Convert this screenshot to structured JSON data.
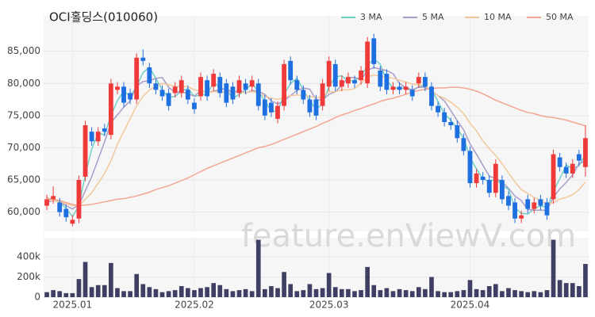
{
  "chart_data": {
    "type": "candlestick",
    "title": "OCI홀딩스(010060)",
    "watermark": "feature.enViewV.com",
    "categories": [
      null,
      null,
      null,
      null,
      "2025.01",
      null,
      null,
      null,
      null,
      null,
      null,
      null,
      null,
      null,
      null,
      null,
      null,
      null,
      null,
      null,
      null,
      null,
      null,
      "2025.02",
      null,
      null,
      null,
      null,
      null,
      null,
      null,
      null,
      null,
      null,
      null,
      null,
      null,
      null,
      null,
      null,
      null,
      null,
      null,
      null,
      "2025.03",
      null,
      null,
      null,
      null,
      null,
      null,
      null,
      null,
      null,
      null,
      null,
      null,
      null,
      null,
      null,
      null,
      null,
      null,
      null,
      null,
      null,
      "2025.04",
      null,
      null,
      null,
      null,
      null,
      null,
      null,
      null,
      null,
      null,
      null,
      null,
      null,
      null,
      null,
      null,
      null,
      null
    ],
    "ylim": [
      57000,
      90500
    ],
    "yticks": [
      {
        "value": 60000,
        "label": "60,000"
      },
      {
        "value": 65000,
        "label": "65,000"
      },
      {
        "value": 70000,
        "label": "70,000"
      },
      {
        "value": 75000,
        "label": "75,000"
      },
      {
        "value": 80000,
        "label": "80,000"
      },
      {
        "value": 85000,
        "label": "85,000"
      }
    ],
    "grid": true,
    "up_color": "#f03a3a",
    "down_color": "#1e6fe0",
    "open": [
      61000,
      62000,
      61500,
      60500,
      58200,
      59000,
      65500,
      72500,
      71000,
      73000,
      72000,
      79000,
      79500,
      78500,
      77500,
      84000,
      82500,
      80000,
      79000,
      78500,
      78500,
      78500,
      79000,
      77000,
      78000,
      80500,
      79500,
      81000,
      80000,
      79500,
      78500,
      80000,
      79500,
      80000,
      77500,
      77000,
      74500,
      76500,
      83500,
      80500,
      79000,
      77500,
      77500,
      76500,
      79500,
      83000,
      79500,
      80000,
      80500,
      80500,
      80000,
      87000,
      82000,
      81500,
      79000,
      79500,
      79000,
      79000,
      80000,
      81000,
      79500,
      76500,
      75500,
      74000,
      73500,
      71500,
      69500,
      64500,
      65500,
      65000,
      63000,
      65000,
      62500,
      61500,
      59000,
      62000,
      60500,
      62000,
      61500,
      62000,
      68500,
      67000,
      66000,
      69000,
      67000
    ],
    "high": [
      62700,
      64000,
      62200,
      61200,
      59500,
      65700,
      74200,
      73200,
      73200,
      73700,
      80700,
      80200,
      80200,
      79200,
      84700,
      85300,
      83200,
      80700,
      79700,
      79200,
      80200,
      81200,
      79700,
      77700,
      81700,
      81200,
      82200,
      81700,
      80700,
      80200,
      81200,
      80700,
      81200,
      80700,
      78200,
      77700,
      77200,
      83700,
      84200,
      81200,
      79700,
      78200,
      78200,
      80700,
      84200,
      83700,
      81200,
      81700,
      81200,
      82700,
      87200,
      87700,
      82700,
      82200,
      80200,
      80200,
      80200,
      79700,
      81700,
      81700,
      80200,
      77200,
      76200,
      74700,
      74200,
      72200,
      70200,
      66700,
      66200,
      65700,
      68200,
      65700,
      63200,
      62200,
      60200,
      62700,
      62200,
      62700,
      62200,
      69700,
      69200,
      67700,
      68200,
      69700,
      73500
    ],
    "low": [
      60300,
      61300,
      59300,
      58500,
      57800,
      58300,
      64800,
      70300,
      70300,
      71800,
      71300,
      78300,
      76300,
      76800,
      76800,
      82800,
      79300,
      78300,
      77300,
      75800,
      77800,
      77800,
      76800,
      75300,
      77300,
      77300,
      78800,
      77800,
      76300,
      76800,
      77800,
      78300,
      78800,
      75800,
      74300,
      74800,
      73800,
      75800,
      79800,
      78300,
      76800,
      74800,
      74300,
      75800,
      78800,
      78800,
      78800,
      79300,
      79300,
      79800,
      79300,
      82300,
      78800,
      78300,
      78300,
      78300,
      78300,
      77300,
      79300,
      78800,
      75800,
      74800,
      73300,
      72800,
      70800,
      68800,
      63800,
      63800,
      64300,
      62300,
      62300,
      61300,
      60300,
      58300,
      58300,
      59800,
      59800,
      60300,
      58800,
      61300,
      66300,
      65300,
      65300,
      67300,
      65500
    ],
    "close": [
      62000,
      62500,
      60000,
      59200,
      58800,
      65000,
      73500,
      71000,
      72500,
      72500,
      80000,
      79500,
      77000,
      77500,
      84000,
      83500,
      80000,
      79000,
      78000,
      76500,
      79500,
      80500,
      77500,
      76000,
      81000,
      78000,
      81500,
      78500,
      77000,
      77500,
      80500,
      79000,
      80500,
      76500,
      75000,
      75500,
      76500,
      83000,
      80500,
      79000,
      77500,
      75500,
      75000,
      80000,
      83500,
      79500,
      80500,
      81000,
      80000,
      82000,
      86500,
      83000,
      79500,
      79000,
      79500,
      79000,
      79500,
      78000,
      81000,
      79500,
      76500,
      75500,
      74000,
      73500,
      71500,
      69500,
      64500,
      66000,
      65000,
      63000,
      67500,
      62000,
      61000,
      59000,
      59500,
      60500,
      61500,
      61000,
      59500,
      69000,
      67000,
      66000,
      67500,
      68000,
      71500
    ],
    "legend": "top-right",
    "series": [
      {
        "name": "3 MA",
        "color": "#6fd1c6",
        "values": [
          61800,
          62200,
          61500,
          60600,
          59300,
          61000,
          65800,
          69800,
          72300,
          72000,
          75000,
          77300,
          78800,
          78000,
          79500,
          81700,
          82500,
          80800,
          79000,
          77800,
          78000,
          78800,
          79200,
          78000,
          78200,
          78300,
          80200,
          79300,
          79000,
          77700,
          78300,
          79000,
          80000,
          78700,
          77300,
          75700,
          75700,
          78300,
          80000,
          80800,
          79000,
          77300,
          76000,
          76800,
          79500,
          81000,
          81200,
          80300,
          80500,
          81000,
          82800,
          83800,
          83000,
          80500,
          79300,
          79200,
          79300,
          78800,
          79500,
          79500,
          79000,
          77200,
          75300,
          74300,
          73000,
          71500,
          68500,
          66700,
          65200,
          64700,
          65200,
          64200,
          63500,
          60700,
          59800,
          59700,
          60500,
          61000,
          60700,
          63200,
          65200,
          67300,
          66800,
          67200,
          69000
        ]
      },
      {
        "name": "5 MA",
        "color": "#a89cc8",
        "values": [
          61500,
          61800,
          61600,
          61000,
          60500,
          61100,
          63300,
          65500,
          68200,
          70900,
          73900,
          75100,
          76300,
          77300,
          79600,
          80300,
          80400,
          80800,
          80900,
          79400,
          78600,
          78700,
          78400,
          78000,
          78900,
          78600,
          78800,
          79000,
          79200,
          78500,
          79000,
          78500,
          78900,
          78800,
          78300,
          77300,
          76800,
          77300,
          78100,
          78900,
          79300,
          79100,
          77500,
          77400,
          78300,
          78700,
          79700,
          80900,
          80900,
          80600,
          82000,
          82500,
          82200,
          82000,
          81500,
          80000,
          79300,
          79000,
          79400,
          79400,
          78900,
          78100,
          77300,
          75800,
          74200,
          72800,
          70600,
          69000,
          67300,
          65600,
          65200,
          64700,
          63700,
          62500,
          61800,
          60400,
          60300,
          60300,
          60300,
          62300,
          63600,
          64600,
          65800,
          67500,
          68000
        ]
      },
      {
        "name": "10 MA",
        "color": "#f2c89a",
        "values": [
          61800,
          61800,
          61600,
          61300,
          61000,
          61000,
          62000,
          63000,
          64500,
          66000,
          68000,
          70500,
          72500,
          74500,
          76500,
          78000,
          79000,
          79500,
          80000,
          79800,
          79500,
          79500,
          79500,
          79000,
          78800,
          78600,
          78700,
          78700,
          78600,
          78600,
          78600,
          78600,
          78700,
          78500,
          78000,
          77700,
          77500,
          77800,
          78100,
          78200,
          78100,
          78000,
          77800,
          77900,
          78700,
          78700,
          79000,
          79000,
          79200,
          80000,
          81000,
          81300,
          81100,
          81000,
          80800,
          80500,
          80200,
          79900,
          79800,
          79600,
          78800,
          78100,
          77700,
          77100,
          76300,
          75300,
          73800,
          72600,
          71100,
          69900,
          68800,
          67500,
          66100,
          64700,
          63500,
          62900,
          62300,
          61800,
          61300,
          61500,
          62000,
          62300,
          62700,
          63500,
          64700
        ]
      },
      {
        "name": "50 MA",
        "color": "#f4a594",
        "values": [
          62200,
          62000,
          61800,
          61500,
          61200,
          61000,
          61100,
          61200,
          61400,
          61600,
          61800,
          62000,
          62100,
          62300,
          62500,
          62800,
          63100,
          63500,
          63800,
          64100,
          64500,
          64900,
          65300,
          65800,
          66300,
          66800,
          67200,
          67600,
          68000,
          68400,
          68800,
          69200,
          69600,
          70000,
          70200,
          70500,
          70900,
          71300,
          71700,
          72100,
          72500,
          72900,
          73300,
          73800,
          74200,
          74700,
          75100,
          75400,
          75800,
          76100,
          76500,
          76800,
          77200,
          77500,
          77700,
          78000,
          78300,
          78700,
          78900,
          79100,
          79200,
          79300,
          79300,
          79400,
          79400,
          79300,
          79100,
          78800,
          78400,
          77900,
          77400,
          77000,
          76600,
          76200,
          75800,
          75500,
          75300,
          75000,
          74800,
          74700,
          74500,
          74300,
          74000,
          73700,
          73400
        ]
      }
    ],
    "volume": {
      "type": "bar",
      "color": "#3f3f63",
      "ylim": [
        0,
        590000
      ],
      "yticks": [
        0,
        {
          "value": 200000,
          "label": "200k"
        },
        {
          "value": 400000,
          "label": "400k"
        }
      ],
      "values": [
        50000,
        70000,
        60000,
        40000,
        40000,
        180000,
        350000,
        100000,
        120000,
        120000,
        340000,
        90000,
        60000,
        60000,
        230000,
        130000,
        100000,
        80000,
        50000,
        60000,
        70000,
        110000,
        90000,
        70000,
        90000,
        100000,
        140000,
        120000,
        80000,
        60000,
        70000,
        80000,
        60000,
        570000,
        80000,
        110000,
        90000,
        250000,
        130000,
        60000,
        70000,
        130000,
        80000,
        90000,
        240000,
        100000,
        80000,
        80000,
        60000,
        70000,
        300000,
        120000,
        70000,
        90000,
        60000,
        80000,
        70000,
        60000,
        100000,
        80000,
        200000,
        60000,
        50000,
        50000,
        60000,
        70000,
        170000,
        80000,
        70000,
        110000,
        130000,
        60000,
        90000,
        70000,
        60000,
        50000,
        60000,
        50000,
        70000,
        570000,
        170000,
        140000,
        140000,
        110000,
        330000
      ]
    }
  }
}
